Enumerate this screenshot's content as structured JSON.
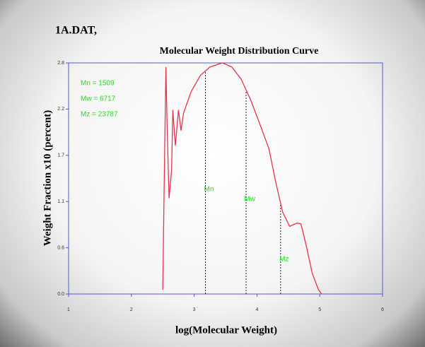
{
  "chart_data": {
    "type": "line",
    "header": "1A.DAT,",
    "title": "Molecular Weight Distribution Curve",
    "xlabel": "log(Molecular Weight)",
    "ylabel": "Weight Fraction x10 (percent)",
    "annotations": [
      "Mn = 1509",
      "Mw = 6717",
      "Mz = 23787"
    ],
    "markers": [
      {
        "label": "Mn",
        "x": 3.179
      },
      {
        "label": "Mw",
        "x": 3.827
      },
      {
        "label": "Mz",
        "x": 4.376
      }
    ],
    "x": [
      2.5,
      2.52,
      2.55,
      2.57,
      2.6,
      2.64,
      2.66,
      2.7,
      2.75,
      2.79,
      2.83,
      2.95,
      3.1,
      3.25,
      3.45,
      3.6,
      3.75,
      3.9,
      4.05,
      4.19,
      4.3,
      4.41,
      4.52,
      4.64,
      4.7,
      4.78,
      4.88,
      4.98,
      5.03
    ],
    "series": [
      {
        "color": "#e8334a",
        "values": [
          0.05,
          1.2,
          2.75,
          2.0,
          1.16,
          1.5,
          2.23,
          1.8,
          2.23,
          1.98,
          2.19,
          2.45,
          2.65,
          2.75,
          2.8,
          2.75,
          2.6,
          2.35,
          2.05,
          1.76,
          1.35,
          0.99,
          0.82,
          0.86,
          0.85,
          0.6,
          0.25,
          0.05,
          0
        ]
      }
    ],
    "xlim": [
      1,
      6
    ],
    "xticks": [
      1,
      2,
      3,
      4,
      5,
      6
    ],
    "ylim": [
      0,
      2.8
    ],
    "yticks": [
      {
        "value": 0,
        "label": "0.0"
      },
      {
        "value": 0.56,
        "label": "0.6"
      },
      {
        "value": 1.12,
        "label": "1.1"
      },
      {
        "value": 1.68,
        "label": "1.7"
      },
      {
        "value": 2.24,
        "label": "2.2"
      },
      2.8
    ],
    "frame_color": "#5555dd",
    "annotation_color": "#22dd22"
  }
}
